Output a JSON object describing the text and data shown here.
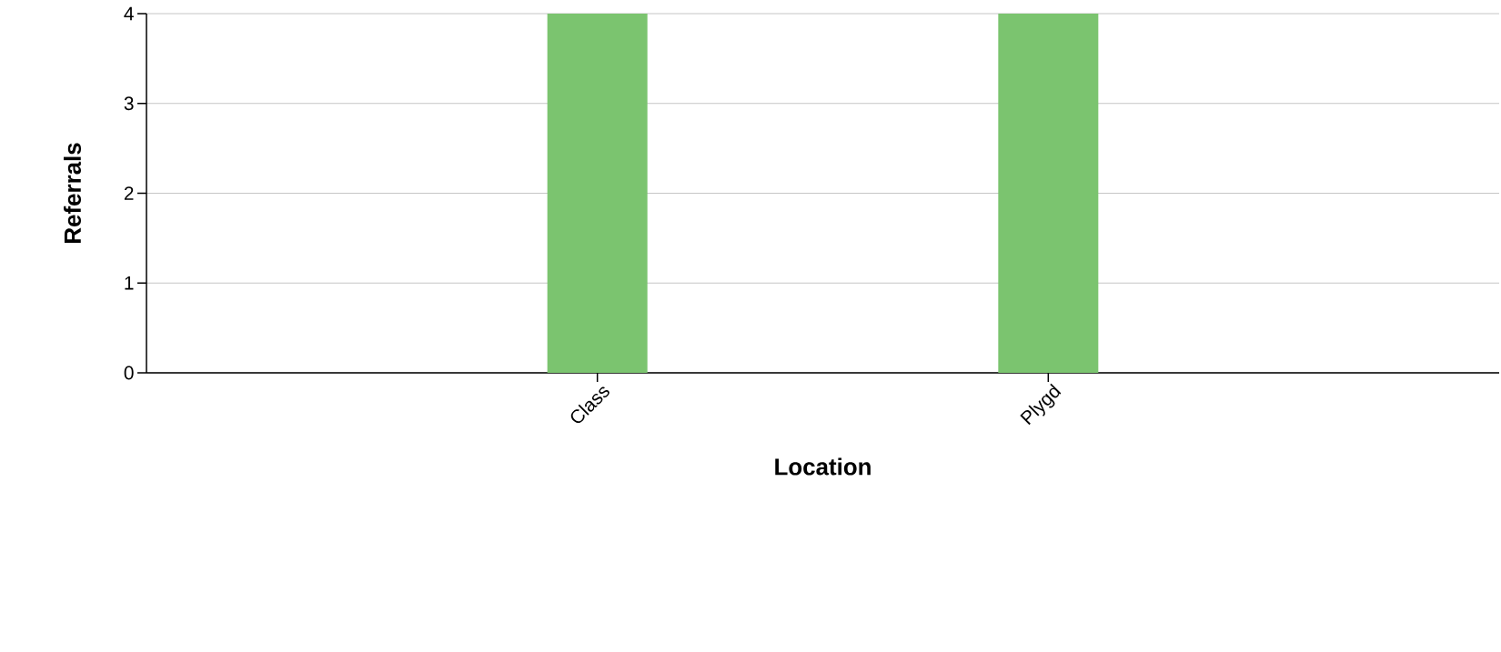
{
  "chart_data": {
    "type": "bar",
    "xlabel": "Location",
    "ylabel": "Referrals",
    "categories": [
      "Class",
      "Plygd"
    ],
    "values": [
      4,
      4
    ],
    "color": "#7bc46f",
    "ylim": [
      0,
      4
    ],
    "yticks": [
      0,
      1,
      2,
      3,
      4
    ],
    "grid": "y"
  }
}
